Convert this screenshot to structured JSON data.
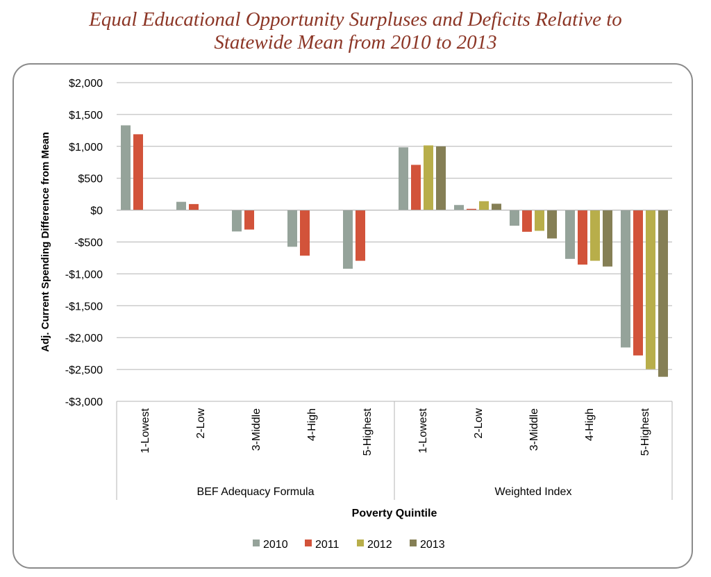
{
  "title_line1": "Equal Educational Opportunity Surpluses and Deficits Relative to",
  "title_line2": "Statewide Mean from 2010 to 2013",
  "chart_data": {
    "type": "bar",
    "title": "Equal Educational Opportunity Surpluses and Deficits Relative to Statewide Mean from 2010 to 2013",
    "xlabel": "Poverty Quintile",
    "ylabel": "Adj. Current Spending Difference from Mean",
    "ylim": [
      -3000,
      2000
    ],
    "yticks": [
      2000,
      1500,
      1000,
      500,
      0,
      -500,
      -1000,
      -1500,
      -2000,
      -2500,
      -3000
    ],
    "ytick_labels": [
      "$2,000",
      "$1,500",
      "$1,000",
      "$500",
      "$0",
      "-$500",
      "-$1,000",
      "-$1,500",
      "-$2,000",
      "-$2,500",
      "-$3,000"
    ],
    "grid": true,
    "legend_position": "bottom",
    "groups": [
      "BEF Adequacy Formula",
      "Weighted Index"
    ],
    "categories": [
      "1-Lowest",
      "2-Low",
      "3-Middle",
      "4-High",
      "5-Highest",
      "1-Lowest",
      "2-Low",
      "3-Middle",
      "4-High",
      "5-Highest"
    ],
    "series": [
      {
        "name": "2010",
        "color": "#95a39a",
        "values": [
          1330,
          130,
          -335,
          -575,
          -920,
          985,
          80,
          -245,
          -765,
          -2155
        ]
      },
      {
        "name": "2011",
        "color": "#d2533a",
        "values": [
          1190,
          95,
          -305,
          -715,
          -795,
          710,
          20,
          -340,
          -855,
          -2280
        ]
      },
      {
        "name": "2012",
        "color": "#b8ae4a",
        "values": [
          null,
          null,
          null,
          null,
          null,
          1015,
          140,
          -325,
          -795,
          -2495
        ]
      },
      {
        "name": "2013",
        "color": "#857f55",
        "values": [
          null,
          null,
          null,
          null,
          null,
          1000,
          100,
          -445,
          -885,
          -2615
        ]
      }
    ]
  }
}
